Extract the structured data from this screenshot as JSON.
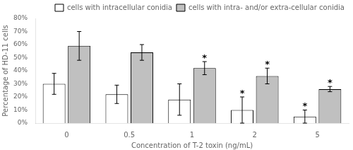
{
  "chart_data": {
    "type": "bar",
    "categories": [
      "0",
      "0.5",
      "1",
      "2",
      "5"
    ],
    "series": [
      {
        "name": "cells with intracellular conidia",
        "color": "#ffffff",
        "values": [
          0.3,
          0.22,
          0.18,
          0.1,
          0.05
        ],
        "errors": [
          0.08,
          0.07,
          0.12,
          0.1,
          0.05
        ]
      },
      {
        "name": "cells with intra- and/or extra-cellular conidia",
        "color": "#c0c0c0",
        "values": [
          0.59,
          0.54,
          0.42,
          0.36,
          0.26
        ],
        "errors": [
          0.11,
          0.06,
          0.05,
          0.06,
          0.02
        ]
      }
    ],
    "annotations": [
      {
        "text": "*",
        "series": "cells with intracellular conidia",
        "category": "2"
      },
      {
        "text": "*",
        "series": "cells with intracellular conidia",
        "category": "5"
      },
      {
        "text": "*",
        "series": "cells with intra- and/or extra-cellular conidia",
        "category": "1"
      },
      {
        "text": "*",
        "series": "cells with intra- and/or extra-cellular conidia",
        "category": "2"
      },
      {
        "text": "*",
        "series": "cells with intra- and/or extra-cellular conidia",
        "category": "5"
      }
    ],
    "xlabel": "Concentration of T-2 toxin (ng/mL)",
    "ylabel": "Percentage of HD-11 cells",
    "ylim": [
      0.0,
      0.8
    ],
    "yticks": [
      {
        "value": 0.0,
        "label": "0%"
      },
      {
        "value": 0.1,
        "label": "10%"
      },
      {
        "value": 0.2,
        "label": "20%"
      },
      {
        "value": 0.3,
        "label": "30%"
      },
      {
        "value": 0.4,
        "label": "40%"
      },
      {
        "value": 0.5,
        "label": "50%"
      },
      {
        "value": 0.6,
        "label": "60%"
      },
      {
        "value": 0.7,
        "label": "70%"
      },
      {
        "value": 0.8,
        "label": "80%"
      }
    ],
    "grid": false,
    "legend": "upper right"
  }
}
